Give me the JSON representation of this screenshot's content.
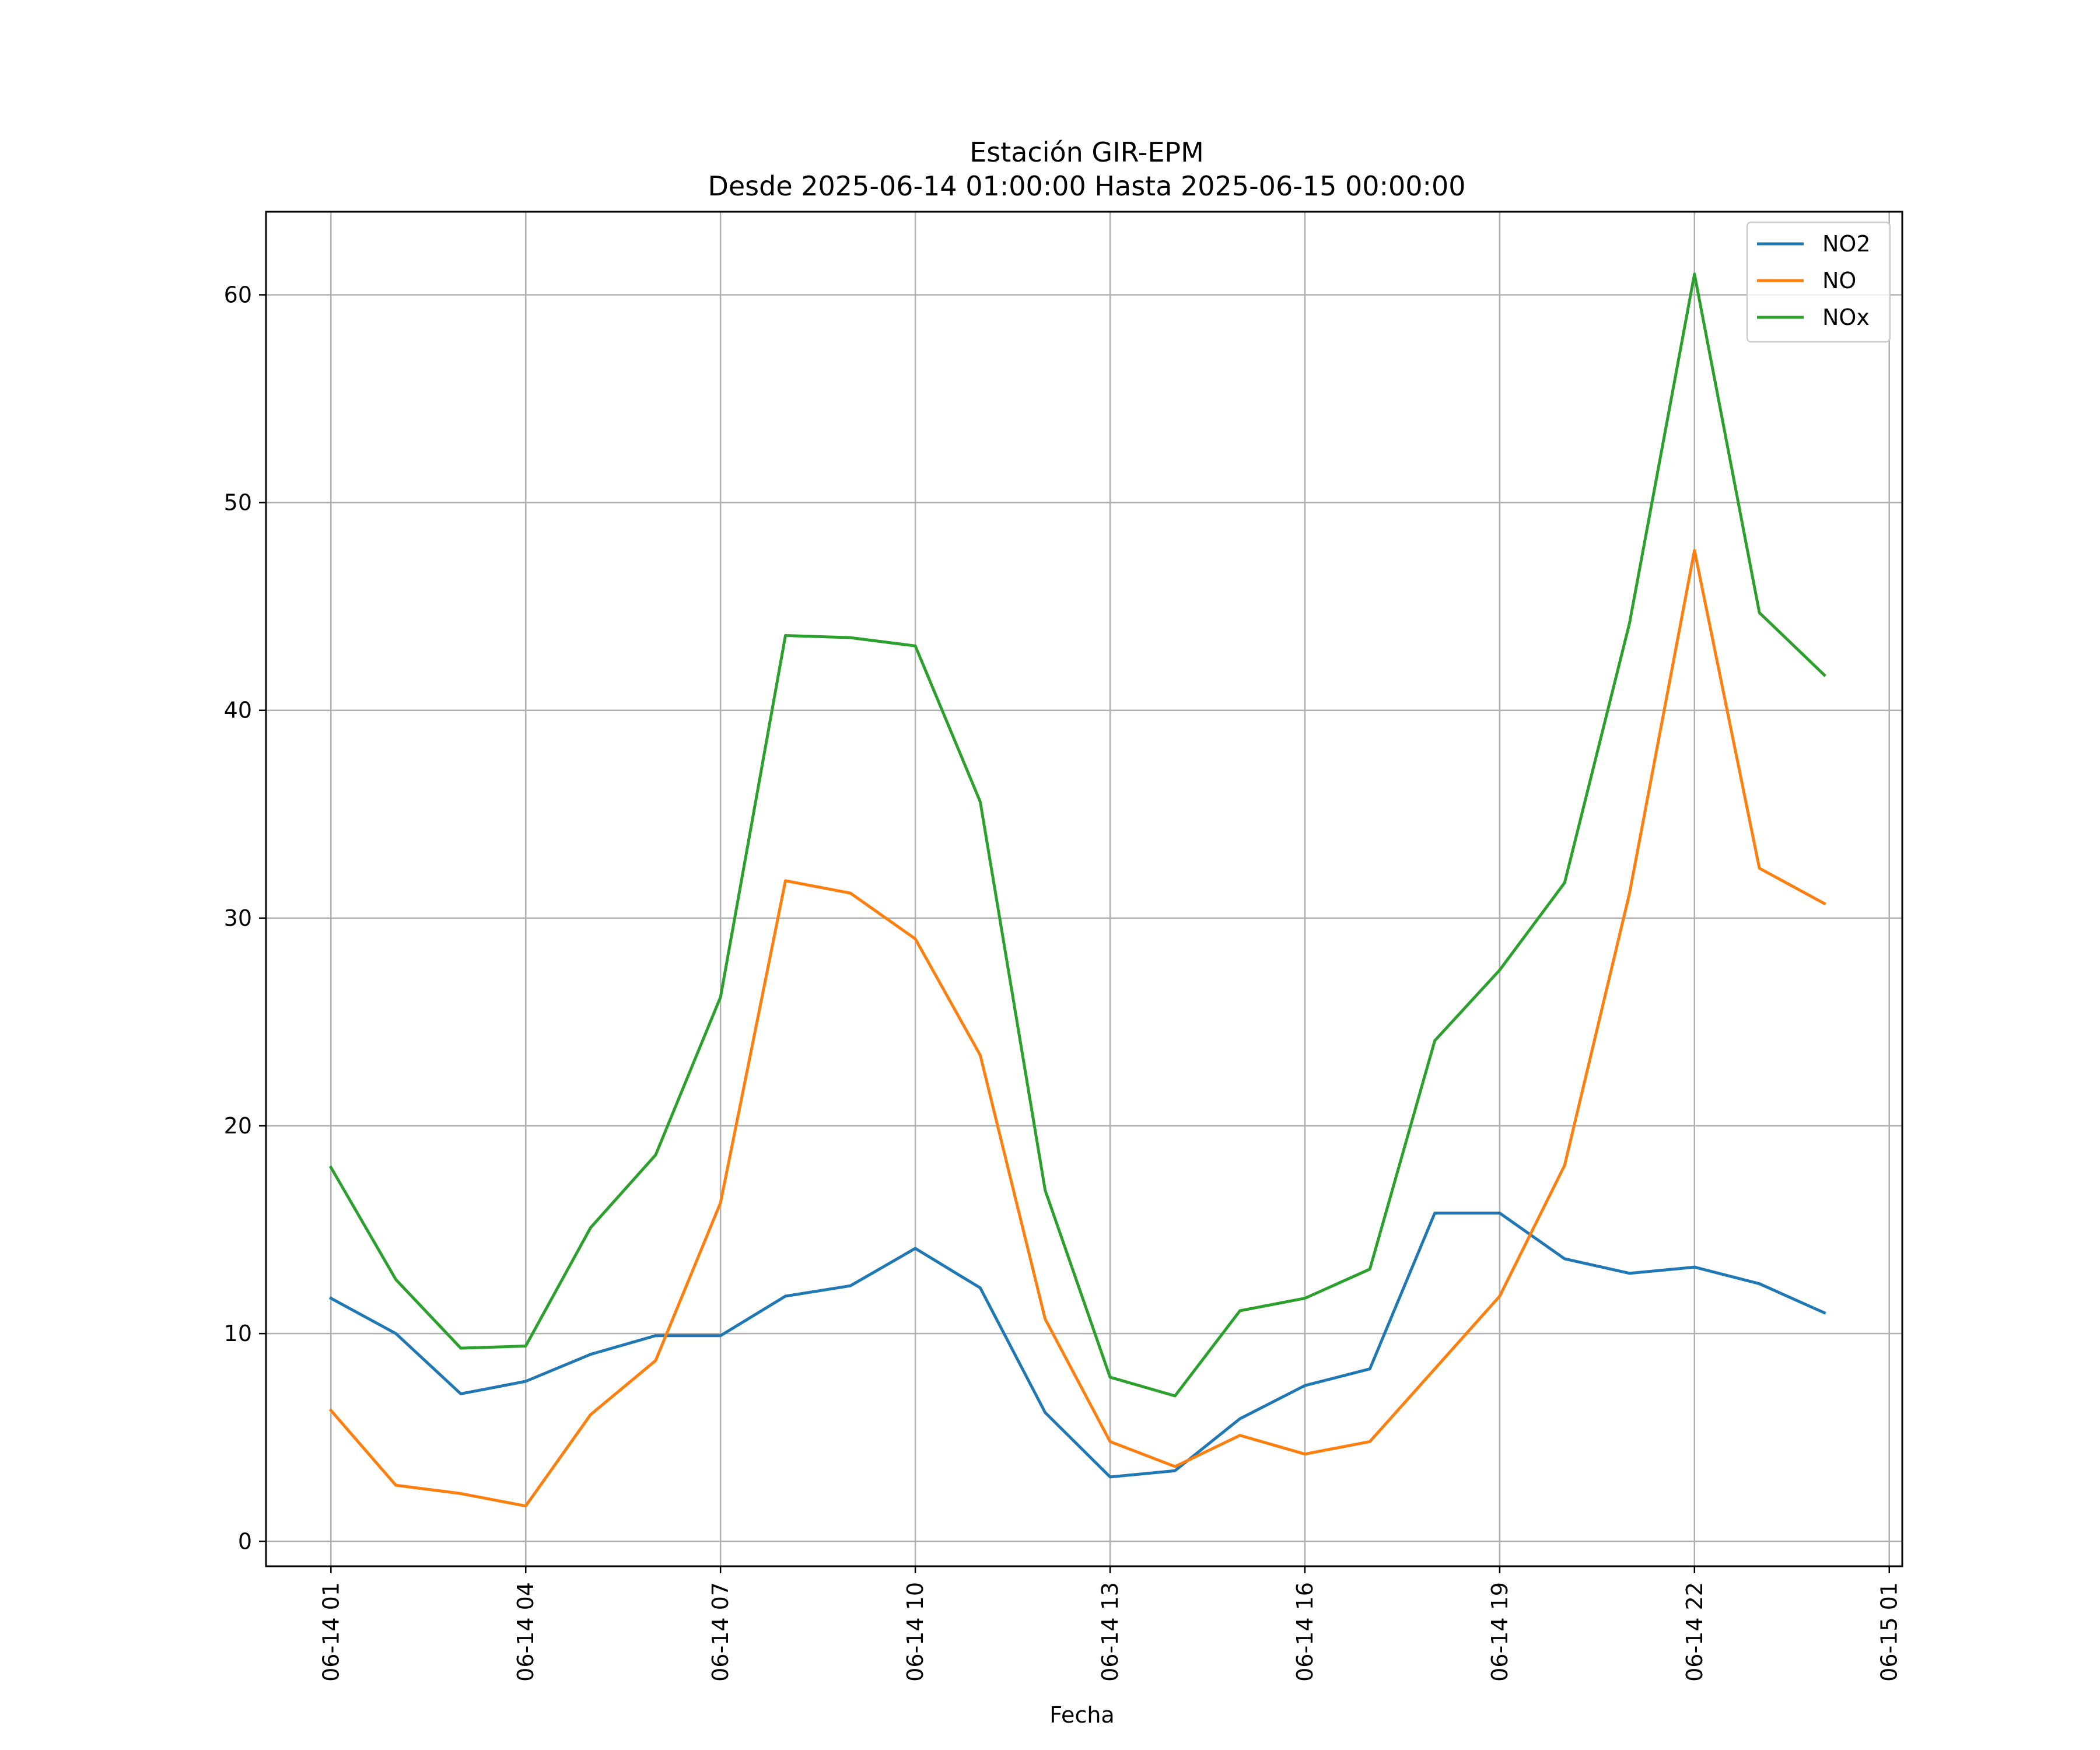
{
  "chart_data": {
    "type": "line",
    "title": "Estación GIR-EPM",
    "subtitle": "Desde 2025-06-14 01:00:00 Hasta 2025-06-15 00:00:00",
    "xlabel": "Fecha",
    "ylabel": "",
    "x": [
      "2025-06-14 01:00",
      "2025-06-14 02:00",
      "2025-06-14 03:00",
      "2025-06-14 04:00",
      "2025-06-14 05:00",
      "2025-06-14 06:00",
      "2025-06-14 07:00",
      "2025-06-14 08:00",
      "2025-06-14 09:00",
      "2025-06-14 10:00",
      "2025-06-14 11:00",
      "2025-06-14 12:00",
      "2025-06-14 13:00",
      "2025-06-14 14:00",
      "2025-06-14 15:00",
      "2025-06-14 16:00",
      "2025-06-14 17:00",
      "2025-06-14 18:00",
      "2025-06-14 19:00",
      "2025-06-14 20:00",
      "2025-06-14 21:00",
      "2025-06-14 22:00",
      "2025-06-14 23:00",
      "2025-06-15 00:00"
    ],
    "xticks": [
      "06-14 01",
      "06-14 04",
      "06-14 07",
      "06-14 10",
      "06-14 13",
      "06-14 16",
      "06-14 19",
      "06-14 22",
      "06-15 01"
    ],
    "xlim": [
      "2025-06-14 00:00",
      "2025-06-15 01:12"
    ],
    "yticks": [
      0,
      10,
      20,
      30,
      40,
      50,
      60
    ],
    "ylim": [
      -1.2,
      64
    ],
    "grid": true,
    "legend": "top-right",
    "series": [
      {
        "name": "NO2",
        "color": "#1f77b4",
        "values": [
          11.7,
          10.0,
          7.1,
          7.7,
          9.0,
          9.9,
          9.9,
          11.8,
          12.3,
          14.1,
          12.2,
          6.2,
          3.1,
          3.4,
          5.9,
          7.5,
          8.3,
          15.8,
          15.8,
          13.6,
          12.9,
          13.2,
          12.4,
          11.0
        ]
      },
      {
        "name": "NO",
        "color": "#ff7f0e",
        "values": [
          6.3,
          2.7,
          2.3,
          1.7,
          6.1,
          8.7,
          16.3,
          31.8,
          31.2,
          29.0,
          23.4,
          10.7,
          4.8,
          3.6,
          5.1,
          4.2,
          4.8,
          8.3,
          11.8,
          18.1,
          31.2,
          47.7,
          32.4,
          30.7
        ]
      },
      {
        "name": "NOx",
        "color": "#2ca02c",
        "values": [
          18.0,
          12.6,
          9.3,
          9.4,
          15.1,
          18.6,
          26.2,
          43.6,
          43.5,
          43.1,
          35.6,
          16.9,
          7.9,
          7.0,
          11.1,
          11.7,
          13.1,
          24.1,
          27.5,
          31.7,
          44.2,
          61.0,
          44.7,
          41.7
        ]
      }
    ]
  }
}
